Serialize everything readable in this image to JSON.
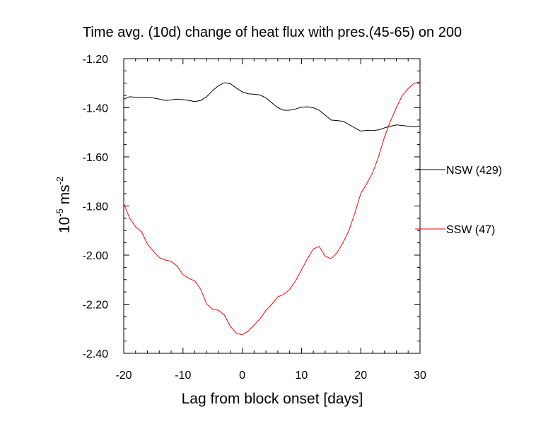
{
  "chart_data": {
    "type": "line",
    "title": "Time avg. (10d) change of heat flux with pres.(45-65) on 200",
    "xlabel": "Lag from block onset [days]",
    "ylabel": {
      "base": "10",
      "base_exp": "-5",
      "unit": " ms",
      "unit_exp": "-2"
    },
    "xlim": [
      -20,
      30
    ],
    "ylim": [
      -2.4,
      -1.2
    ],
    "xticks": [
      -20,
      -10,
      0,
      10,
      20,
      30
    ],
    "xtick_labels": [
      "-20",
      "-10",
      "0",
      "10",
      "20",
      "30"
    ],
    "yticks": [
      -2.4,
      -2.2,
      -2.0,
      -1.8,
      -1.6,
      -1.4,
      -1.2
    ],
    "ytick_labels": [
      "-2.40",
      "-2.20",
      "-2.00",
      "-1.80",
      "-1.60",
      "-1.40",
      "-1.20"
    ],
    "grid": false,
    "legend_position": "right-outside",
    "series": [
      {
        "name": "NSW (429)",
        "color": "#000000",
        "x": [
          -20,
          -19,
          -18,
          -17,
          -16,
          -15,
          -14,
          -13,
          -12,
          -11,
          -10,
          -9,
          -8,
          -7,
          -6,
          -5,
          -4,
          -3,
          -2,
          -1,
          0,
          1,
          2,
          3,
          4,
          5,
          6,
          7,
          8,
          9,
          10,
          11,
          12,
          13,
          14,
          15,
          16,
          17,
          18,
          19,
          20,
          21,
          22,
          23,
          24,
          25,
          26,
          27,
          28,
          29,
          30
        ],
        "y": [
          -1.365,
          -1.355,
          -1.357,
          -1.358,
          -1.357,
          -1.36,
          -1.365,
          -1.37,
          -1.368,
          -1.365,
          -1.367,
          -1.37,
          -1.375,
          -1.37,
          -1.355,
          -1.33,
          -1.31,
          -1.298,
          -1.302,
          -1.32,
          -1.335,
          -1.343,
          -1.345,
          -1.348,
          -1.36,
          -1.38,
          -1.4,
          -1.41,
          -1.41,
          -1.405,
          -1.398,
          -1.396,
          -1.4,
          -1.41,
          -1.43,
          -1.45,
          -1.452,
          -1.455,
          -1.468,
          -1.482,
          -1.495,
          -1.492,
          -1.493,
          -1.49,
          -1.482,
          -1.475,
          -1.47,
          -1.472,
          -1.475,
          -1.478,
          -1.475
        ]
      },
      {
        "name": "SSW (47)",
        "color": "#ff0000",
        "x": [
          -20,
          -19,
          -18,
          -17,
          -16,
          -15,
          -14,
          -13,
          -12,
          -11,
          -10,
          -9,
          -8,
          -7,
          -6,
          -5,
          -4,
          -3,
          -2,
          -1,
          0,
          1,
          2,
          3,
          4,
          5,
          6,
          7,
          8,
          9,
          10,
          11,
          12,
          13,
          14,
          15,
          16,
          17,
          18,
          19,
          20,
          21,
          22,
          23,
          24,
          25,
          26,
          27,
          28,
          29,
          30
        ],
        "y": [
          -1.79,
          -1.85,
          -1.885,
          -1.905,
          -1.955,
          -1.985,
          -2.01,
          -2.02,
          -2.025,
          -2.045,
          -2.08,
          -2.095,
          -2.105,
          -2.14,
          -2.2,
          -2.22,
          -2.225,
          -2.245,
          -2.29,
          -2.318,
          -2.325,
          -2.31,
          -2.285,
          -2.26,
          -2.225,
          -2.2,
          -2.17,
          -2.16,
          -2.14,
          -2.105,
          -2.06,
          -2.015,
          -1.975,
          -1.965,
          -2.005,
          -2.015,
          -1.99,
          -1.95,
          -1.9,
          -1.83,
          -1.75,
          -1.71,
          -1.665,
          -1.6,
          -1.52,
          -1.455,
          -1.4,
          -1.35,
          -1.322,
          -1.3,
          -1.295
        ]
      }
    ]
  }
}
